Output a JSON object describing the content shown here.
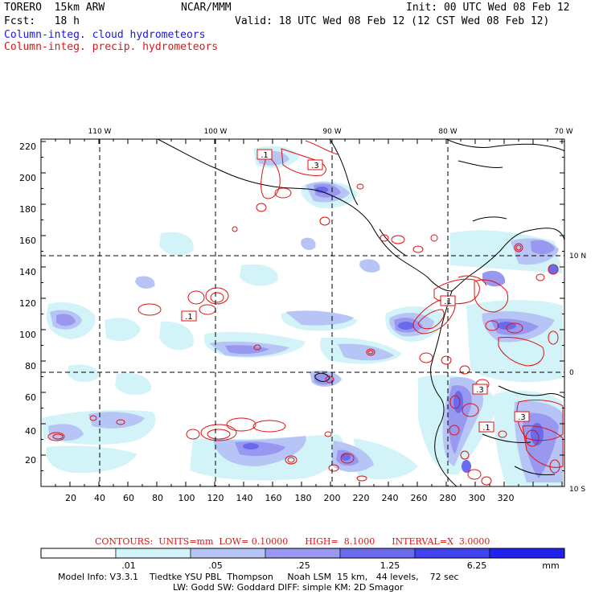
{
  "header": {
    "model": "TORERO  15km ARW",
    "center": "NCAR/MMM",
    "init": "Init: 00 UTC Wed 08 Feb 12",
    "fcst": "Fcst:   18 h",
    "valid": "Valid: 18 UTC Wed 08 Feb 12 (12 CST Wed 08 Feb 12)",
    "field1": "Column-integ. cloud hydrometeors",
    "field2": "Column-integ. precip. hydrometeors"
  },
  "colors": {
    "field1": "#1a1ad6",
    "field2": "#d81818",
    "precip_contour": "#e01010",
    "coast": "#000000"
  },
  "map": {
    "lon_labels": [
      "110 W",
      "100 W",
      "90 W",
      "80 W",
      "70 W"
    ],
    "lat_labels": [
      "10 N",
      "0",
      "10 S"
    ],
    "x_ticks": [
      "20",
      "40",
      "60",
      "80",
      "100",
      "120",
      "140",
      "160",
      "180",
      "200",
      "220",
      "240",
      "260",
      "280",
      "300",
      "320"
    ],
    "y_ticks": [
      "20",
      "40",
      "60",
      "80",
      "100",
      "120",
      "140",
      "160",
      "180",
      "200",
      "220"
    ],
    "contour_labels": [
      ".1",
      ".3",
      ".1",
      ".3",
      ".1",
      ".3",
      ".1"
    ]
  },
  "contours_info": "CONTOURS:  UNITS=mm  LOW= 0.10000      HIGH=  8.1000      INTERVAL=X  3.0000",
  "colorbar": {
    "labels": [
      ".01",
      ".05",
      ".25",
      "1.25",
      "6.25"
    ],
    "unit": "mm",
    "fills": [
      "#ffffff",
      "#d2f4f8",
      "#b6c4f6",
      "#9898f0",
      "#6a6aec",
      "#4242ee",
      "#2222ee"
    ]
  },
  "footer": {
    "line1": "Model Info: V3.3.1    Tiedtke YSU PBL  Thompson     Noah LSM  15 km,   44 levels,    72 sec",
    "line2": "LW: Godd SW: Goddard DIFF: simple KM: 2D Smagor"
  }
}
